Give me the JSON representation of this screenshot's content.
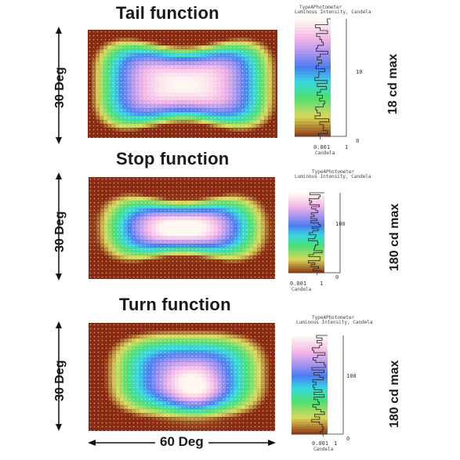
{
  "panels": [
    {
      "title": "Tail function",
      "left_label": "30 Deg",
      "right_label": "18 cd max",
      "legend_header_1": "TypeAPhotometer",
      "legend_header_2": "Luminous Intensity, Candela",
      "mid_tick": "10",
      "low_tick": "0.001",
      "low_tick_unit": "Candela",
      "top_tick": "1",
      "zero_tick": "0",
      "shape": "tail"
    },
    {
      "title": "Stop function",
      "left_label": "30 Deg",
      "right_label": "180 cd max",
      "legend_header_1": "TypeAPhotometer",
      "legend_header_2": "Luminous Intensity, Candela",
      "mid_tick": "100",
      "low_tick": "0.001",
      "low_tick_unit": "Candela",
      "top_tick": "1",
      "zero_tick": "0",
      "shape": "stop"
    },
    {
      "title": "Turn function",
      "left_label": "30 Deg",
      "right_label": "180 cd max",
      "legend_header_1": "TypeAPhotometer",
      "legend_header_2": "Luminous Intensity, Candela",
      "mid_tick": "100",
      "low_tick": "0.001",
      "low_tick_unit": "Candela",
      "top_tick": "1",
      "zero_tick": "0",
      "shape": "turn"
    }
  ],
  "bottom_label": "60 Deg",
  "colors": {
    "hot": "#fff8f0",
    "pink": "#f3b4e6",
    "violet": "#9a8ff0",
    "blue": "#4a7df0",
    "cyan": "#35d7e0",
    "green": "#4ee070",
    "yellow": "#d9d95a",
    "brown": "#8a2a10"
  }
}
